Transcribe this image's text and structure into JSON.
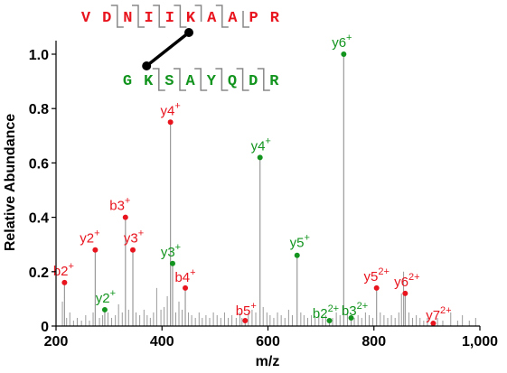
{
  "chart_data": {
    "type": "bar",
    "xlabel": "m/z",
    "ylabel": "Relative Abundance",
    "xlim": [
      200,
      1000
    ],
    "ylim": [
      0,
      1.05
    ],
    "x_ticks": [
      200,
      400,
      600,
      800,
      1000
    ],
    "x_tick_labels": [
      "200",
      "400",
      "600",
      "800",
      "1,000"
    ],
    "y_ticks": [
      0,
      0.2,
      0.4,
      0.6,
      0.8,
      1.0
    ],
    "y_tick_labels": [
      "0",
      "0.2",
      "0.4",
      "0.6",
      "0.8",
      "1.0"
    ],
    "grid": false,
    "colors": {
      "alpha_chain": "#e8141e",
      "beta_chain": "#12941e",
      "peaks": "#9a9a9a",
      "crosslink": "#000000"
    },
    "peptides": {
      "alpha": {
        "sequence": [
          "V",
          "D",
          "N",
          "I",
          "I",
          "K",
          "A",
          "A",
          "P",
          "R"
        ],
        "crosslink_residue_index": 5
      },
      "beta": {
        "sequence": [
          "G",
          "K",
          "S",
          "A",
          "Y",
          "Q",
          "D",
          "R"
        ],
        "crosslink_residue_index": 1
      }
    },
    "labeled_peaks": [
      {
        "ion": "b2",
        "charge": "+",
        "chain": "alpha",
        "mz": 216,
        "abundance": 0.16
      },
      {
        "ion": "y2",
        "charge": "+",
        "chain": "alpha",
        "mz": 274,
        "abundance": 0.28
      },
      {
        "ion": "y2",
        "charge": "+",
        "chain": "beta",
        "mz": 292,
        "abundance": 0.06
      },
      {
        "ion": "b3",
        "charge": "+",
        "chain": "alpha",
        "mz": 331,
        "abundance": 0.4
      },
      {
        "ion": "y3",
        "charge": "+",
        "chain": "alpha",
        "mz": 345,
        "abundance": 0.28
      },
      {
        "ion": "y4",
        "charge": "+",
        "chain": "alpha",
        "mz": 416,
        "abundance": 0.75
      },
      {
        "ion": "y3",
        "charge": "+",
        "chain": "beta",
        "mz": 420,
        "abundance": 0.23
      },
      {
        "ion": "b4",
        "charge": "+",
        "chain": "alpha",
        "mz": 444,
        "abundance": 0.14
      },
      {
        "ion": "b5",
        "charge": "+",
        "chain": "alpha",
        "mz": 557,
        "abundance": 0.02
      },
      {
        "ion": "y4",
        "charge": "+",
        "chain": "beta",
        "mz": 585,
        "abundance": 0.62
      },
      {
        "ion": "y5",
        "charge": "+",
        "chain": "beta",
        "mz": 655,
        "abundance": 0.26
      },
      {
        "ion": "b2",
        "charge": "2+",
        "chain": "beta",
        "mz": 716,
        "abundance": 0.02
      },
      {
        "ion": "y6",
        "charge": "+",
        "chain": "beta",
        "mz": 743,
        "abundance": 1.0
      },
      {
        "ion": "b3",
        "charge": "2+",
        "chain": "beta",
        "mz": 757,
        "abundance": 0.03
      },
      {
        "ion": "y5",
        "charge": "2+",
        "chain": "alpha",
        "mz": 805,
        "abundance": 0.14
      },
      {
        "ion": "y6",
        "charge": "2+",
        "chain": "alpha",
        "mz": 859,
        "abundance": 0.12
      },
      {
        "ion": "y7",
        "charge": "2+",
        "chain": "alpha",
        "mz": 912,
        "abundance": 0.01
      }
    ],
    "other_peaks": [
      [
        212,
        0.09
      ],
      [
        220,
        0.03
      ],
      [
        226,
        0.05
      ],
      [
        233,
        0.02
      ],
      [
        240,
        0.03
      ],
      [
        248,
        0.02
      ],
      [
        256,
        0.04
      ],
      [
        263,
        0.02
      ],
      [
        270,
        0.05
      ],
      [
        282,
        0.03
      ],
      [
        288,
        0.04
      ],
      [
        298,
        0.05
      ],
      [
        305,
        0.03
      ],
      [
        312,
        0.04
      ],
      [
        318,
        0.08
      ],
      [
        325,
        0.05
      ],
      [
        337,
        0.06
      ],
      [
        351,
        0.05
      ],
      [
        358,
        0.04
      ],
      [
        366,
        0.06
      ],
      [
        372,
        0.04
      ],
      [
        378,
        0.03
      ],
      [
        384,
        0.05
      ],
      [
        390,
        0.14
      ],
      [
        398,
        0.06
      ],
      [
        404,
        0.07
      ],
      [
        410,
        0.11
      ],
      [
        426,
        0.05
      ],
      [
        432,
        0.09
      ],
      [
        438,
        0.06
      ],
      [
        450,
        0.05
      ],
      [
        456,
        0.04
      ],
      [
        463,
        0.03
      ],
      [
        470,
        0.05
      ],
      [
        476,
        0.03
      ],
      [
        483,
        0.04
      ],
      [
        490,
        0.03
      ],
      [
        497,
        0.05
      ],
      [
        504,
        0.04
      ],
      [
        511,
        0.03
      ],
      [
        518,
        0.05
      ],
      [
        525,
        0.03
      ],
      [
        532,
        0.04
      ],
      [
        540,
        0.03
      ],
      [
        547,
        0.05
      ],
      [
        551,
        0.03
      ],
      [
        563,
        0.05
      ],
      [
        570,
        0.06
      ],
      [
        577,
        0.05
      ],
      [
        591,
        0.07
      ],
      [
        598,
        0.05
      ],
      [
        604,
        0.04
      ],
      [
        611,
        0.03
      ],
      [
        618,
        0.05
      ],
      [
        625,
        0.04
      ],
      [
        632,
        0.03
      ],
      [
        639,
        0.06
      ],
      [
        646,
        0.04
      ],
      [
        662,
        0.05
      ],
      [
        668,
        0.04
      ],
      [
        675,
        0.03
      ],
      [
        682,
        0.04
      ],
      [
        689,
        0.03
      ],
      [
        696,
        0.05
      ],
      [
        703,
        0.03
      ],
      [
        709,
        0.04
      ],
      [
        722,
        0.03
      ],
      [
        729,
        0.05
      ],
      [
        736,
        0.04
      ],
      [
        750,
        0.05
      ],
      [
        763,
        0.03
      ],
      [
        770,
        0.04
      ],
      [
        777,
        0.03
      ],
      [
        784,
        0.05
      ],
      [
        791,
        0.04
      ],
      [
        798,
        0.03
      ],
      [
        812,
        0.05
      ],
      [
        819,
        0.04
      ],
      [
        826,
        0.03
      ],
      [
        833,
        0.04
      ],
      [
        840,
        0.03
      ],
      [
        847,
        0.05
      ],
      [
        852,
        0.12
      ],
      [
        856,
        0.2
      ],
      [
        866,
        0.05
      ],
      [
        873,
        0.03
      ],
      [
        880,
        0.04
      ],
      [
        887,
        0.03
      ],
      [
        894,
        0.02
      ],
      [
        901,
        0.03
      ],
      [
        920,
        0.03
      ],
      [
        930,
        0.02
      ],
      [
        945,
        0.05
      ],
      [
        958,
        0.02
      ],
      [
        967,
        0.04
      ],
      [
        980,
        0.02
      ],
      [
        992,
        0.03
      ]
    ]
  }
}
